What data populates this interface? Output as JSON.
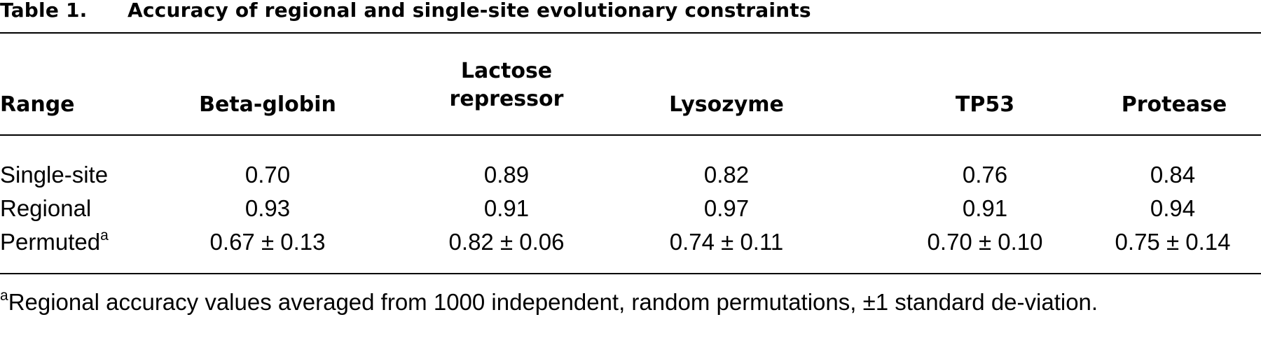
{
  "caption": {
    "label": "Table 1.",
    "title": "Accuracy of regional and single-site evolutionary constraints"
  },
  "table": {
    "header": {
      "range": "Range",
      "columns": [
        {
          "line1": "Beta-globin",
          "line2": ""
        },
        {
          "line1": "Lactose",
          "line2": "repressor"
        },
        {
          "line1": "Lysozyme",
          "line2": ""
        },
        {
          "line1": "TP53",
          "line2": ""
        },
        {
          "line1": "Protease",
          "line2": ""
        }
      ]
    },
    "rows": [
      {
        "label": "Single-site",
        "sup": "",
        "values": [
          "0.70",
          "0.89",
          "0.82",
          "0.76",
          "0.84"
        ]
      },
      {
        "label": "Regional",
        "sup": "",
        "values": [
          "0.93",
          "0.91",
          "0.97",
          "0.91",
          "0.94"
        ]
      },
      {
        "label": "Permuted",
        "sup": "a",
        "values": [
          "0.67 ± 0.13",
          "0.82 ± 0.06",
          "0.74 ± 0.11",
          "0.70 ± 0.10",
          "0.75 ± 0.14"
        ]
      }
    ]
  },
  "footnote": {
    "marker": "a",
    "text": "Regional accuracy values averaged from 1000 independent, random permutations, ±1 standard de-viation."
  }
}
